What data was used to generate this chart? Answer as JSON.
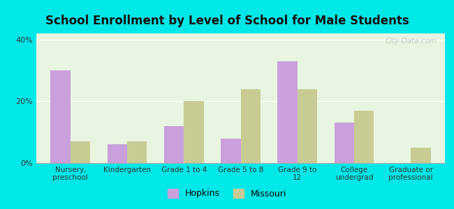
{
  "title": "School Enrollment by Level of School for Male Students",
  "categories": [
    "Nursery,\npreschool",
    "Kindergarten",
    "Grade 1 to 4",
    "Grade 5 to 8",
    "Grade 9 to\n12",
    "College\nundergrad",
    "Graduate or\nprofessional"
  ],
  "hopkins": [
    30,
    6,
    12,
    8,
    33,
    13,
    0
  ],
  "missouri": [
    7,
    7,
    20,
    24,
    24,
    17,
    5
  ],
  "hopkins_color": "#c9a0dc",
  "missouri_color": "#c8cc94",
  "background_outer": "#00e8e8",
  "background_plot": "#e8f5e0",
  "yticks": [
    0,
    20,
    40
  ],
  "ytick_labels": [
    "0%",
    "20%",
    "40%"
  ],
  "ylim": [
    0,
    42
  ],
  "title_fontsize": 12,
  "legend_labels": [
    "Hopkins",
    "Missouri"
  ],
  "bar_width": 0.35,
  "watermark": "City-Data.com"
}
